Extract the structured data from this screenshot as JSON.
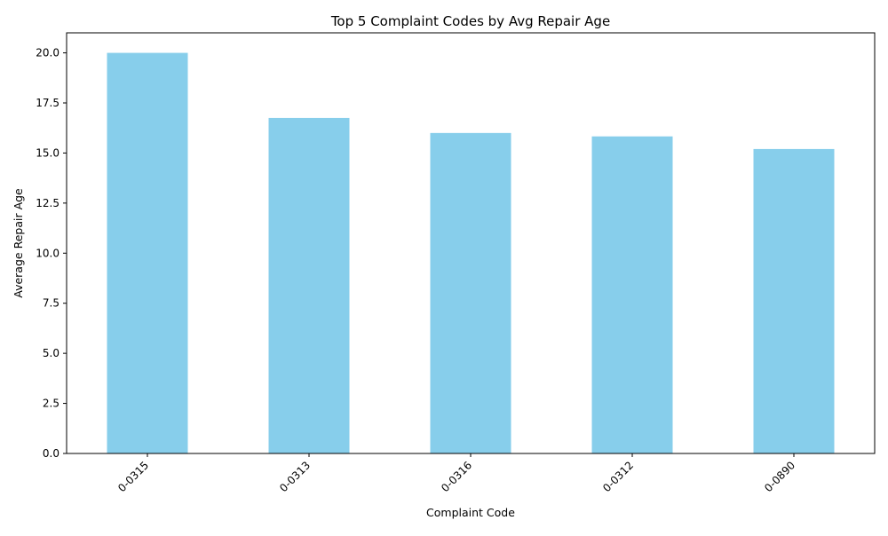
{
  "chart_data": {
    "type": "bar",
    "title": "Top 5 Complaint Codes by Avg Repair Age",
    "xlabel": "Complaint Code",
    "ylabel": "Average Repair Age",
    "categories": [
      "0-0315",
      "0-0313",
      "0-0316",
      "0-0312",
      "0-0890"
    ],
    "values": [
      20.0,
      16.75,
      16.0,
      15.83,
      15.2
    ],
    "ylim": [
      0,
      21
    ],
    "yticks": [
      0.0,
      2.5,
      5.0,
      7.5,
      10.0,
      12.5,
      15.0,
      17.5,
      20.0
    ],
    "ytick_labels": [
      "0.0",
      "2.5",
      "5.0",
      "7.5",
      "10.0",
      "12.5",
      "15.0",
      "17.5",
      "20.0"
    ],
    "grid": false,
    "legend": "none",
    "colors": {
      "bar": "#87ceeb",
      "axis": "#000000",
      "background": "#ffffff"
    }
  }
}
